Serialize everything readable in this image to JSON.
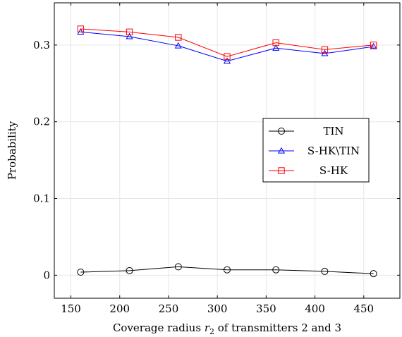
{
  "chart_data": {
    "type": "line",
    "xlabel": "Coverage radius r_2 of transmitters 2 and 3",
    "xlabel_parts": {
      "before": "Coverage radius ",
      "var": "r",
      "sub": "2",
      "after": " of transmitters 2 and 3"
    },
    "ylabel": "Probability",
    "x": [
      160,
      210,
      260,
      310,
      360,
      410,
      460
    ],
    "xlim": [
      133,
      487
    ],
    "ylim": [
      -0.03,
      0.355
    ],
    "xticks": [
      150,
      200,
      250,
      300,
      350,
      400,
      450
    ],
    "xtick_labels": [
      "150",
      "200",
      "250",
      "300",
      "350",
      "400",
      "450"
    ],
    "yticks": [
      0,
      0.1,
      0.2,
      0.3
    ],
    "ytick_labels": [
      "0",
      "0.1",
      "0.2",
      "0.3"
    ],
    "grid": true,
    "legend_position": "center-right",
    "series": [
      {
        "name": "TIN",
        "marker": "circle",
        "color": "#000000",
        "values": [
          0.004,
          0.006,
          0.011,
          0.007,
          0.007,
          0.005,
          0.002
        ]
      },
      {
        "name": "S-HK\\TIN",
        "marker": "triangle",
        "color": "#0000ff",
        "values": [
          0.317,
          0.311,
          0.299,
          0.279,
          0.296,
          0.289,
          0.298
        ]
      },
      {
        "name": "S-HK",
        "marker": "square",
        "color": "#ff0000",
        "values": [
          0.321,
          0.317,
          0.31,
          0.285,
          0.303,
          0.294,
          0.3
        ]
      }
    ]
  }
}
